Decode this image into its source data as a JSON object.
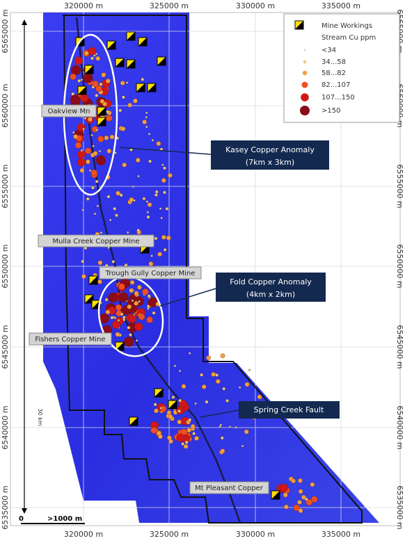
{
  "grid": {
    "x_labels": [
      "320000 m",
      "325000 m",
      "330000 m",
      "335000 m"
    ],
    "y_labels": [
      "6565000 m",
      "6560000 m",
      "6555000 m",
      "6550000 m",
      "6545000 m",
      "6540000 m",
      "6535000 m"
    ]
  },
  "legend": {
    "items": [
      "Mine Workings",
      "Stream Cu ppm",
      "<34",
      "34...58",
      "58...82",
      "82...107",
      "107...150",
      ">150"
    ]
  },
  "places": [
    "Oakview Mn",
    "Mulla Creek Copper Mine",
    "Trough Gully Copper Mine",
    "Fishers Copper Mine",
    "Mt Pleasant Copper"
  ],
  "callouts": [
    {
      "title": "Kasey Copper Anomaly",
      "size": "(7km x 3km)"
    },
    {
      "title": "Fold Copper Anomaly",
      "size": "(4km x 2km)"
    },
    {
      "title": "Spring Creek Fault"
    }
  ],
  "scale": {
    "zero": "0",
    "bar": ">1000 m",
    "length": "30 km"
  }
}
